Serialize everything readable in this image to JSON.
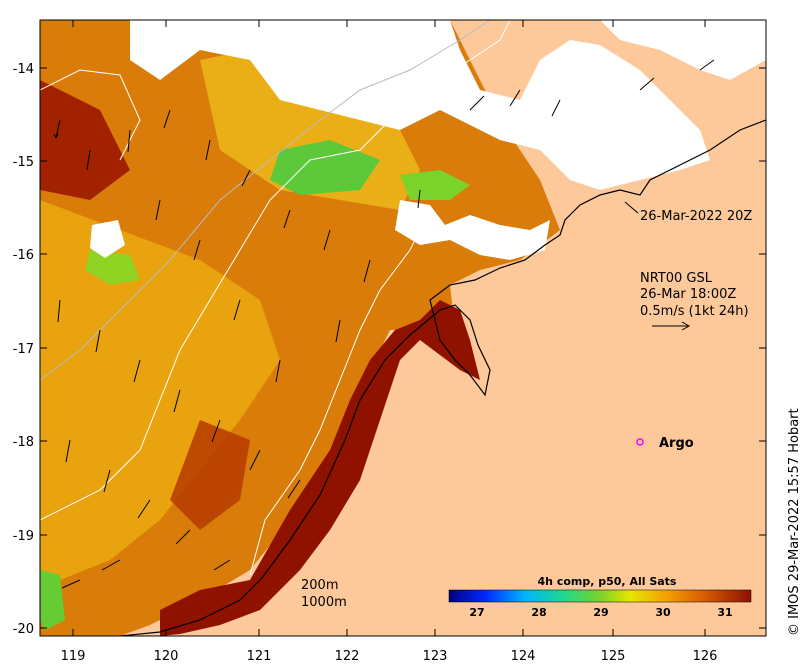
{
  "map": {
    "x_ticks": [
      "119",
      "120",
      "121",
      "122",
      "123",
      "124",
      "125",
      "126"
    ],
    "y_ticks": [
      "-14",
      "-15",
      "-16",
      "-17",
      "-18",
      "-19",
      "-20"
    ]
  },
  "annotations": {
    "timestamp": "26-Mar-2022 20Z",
    "current_product": "NRT00 GSL",
    "current_time": "26-Mar 18:00Z",
    "current_scale": "0.5m/s (1kt 24h)",
    "argo_label": "Argo"
  },
  "legend": {
    "isobath_200": "200m",
    "isobath_1000": "1000m"
  },
  "colorbar": {
    "title": "4h comp, p50, All Sats",
    "ticks": [
      "27",
      "28",
      "29",
      "30",
      "31"
    ]
  },
  "credit": "© IMOS 29-Mar-2022 15:57 Hobart",
  "colors": {
    "land": "#fdc89a",
    "hot": "#8f1100",
    "warm": "#d47000",
    "mild": "#e8a000",
    "cool": "#42c83a",
    "argo": "#ff00ff"
  }
}
